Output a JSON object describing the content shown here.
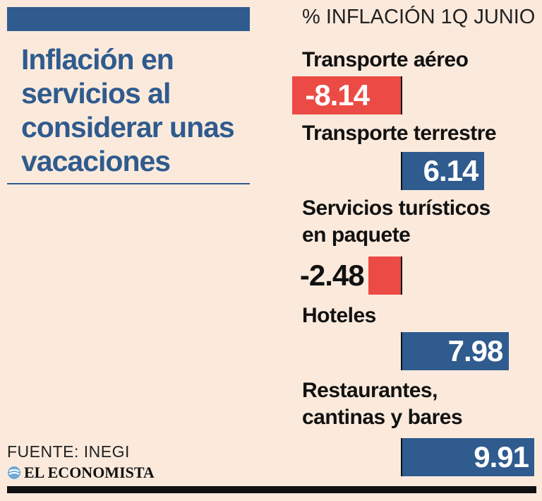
{
  "header": {
    "title": "Inflación en servicios al considerar unas vacaciones",
    "unit_label": "% INFLACIÓN 1Q JUNIO"
  },
  "chart_data": {
    "type": "bar",
    "orientation": "horizontal",
    "title": "Inflación en servicios al considerar unas vacaciones",
    "ylabel": "% INFLACIÓN 1Q JUNIO",
    "categories": [
      "Transporte aéreo",
      "Transporte terrestre",
      "Servicios turísticos en paquete",
      "Hoteles",
      "Restaurantes, cantinas y bares"
    ],
    "category_lines": [
      [
        "Transporte aéreo"
      ],
      [
        "Transporte terrestre"
      ],
      [
        "Servicios turísticos",
        "en paquete"
      ],
      [
        "Hoteles"
      ],
      [
        "Restaurantes,",
        "cantinas y bares"
      ]
    ],
    "values": [
      -8.14,
      6.14,
      -2.48,
      7.98,
      9.91
    ],
    "value_labels": [
      "-8.14",
      "6.14",
      "-2.48",
      "7.98",
      "9.91"
    ],
    "xlim": [
      -8.14,
      9.91
    ],
    "colors": {
      "negative": "#ec4a45",
      "positive": "#2f5b8e"
    }
  },
  "footer": {
    "source": "FUENTE: INEGI",
    "brand": "EL ECONOMISTA"
  }
}
